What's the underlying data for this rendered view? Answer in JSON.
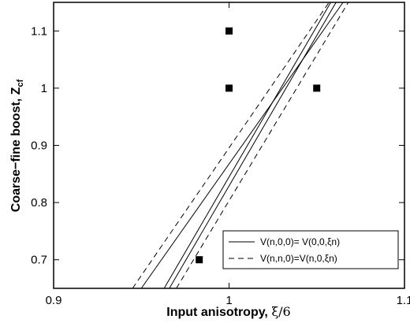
{
  "chart_data": {
    "type": "line",
    "xlabel_main": "Input anisotropy, ",
    "xlabel_symbol": "ξ/6",
    "ylabel_main": "Coarse−fine boost, Z",
    "ylabel_sub": "cf",
    "xlim": [
      0.9,
      1.1
    ],
    "ylim": [
      0.65,
      1.15
    ],
    "xticks": [
      0.9,
      1.0,
      1.1
    ],
    "xtick_labels": [
      "0.9",
      "1",
      "1.1"
    ],
    "yticks": [
      0.7,
      0.8,
      0.9,
      1.0,
      1.1
    ],
    "ytick_labels": [
      "0.7",
      "0.8",
      "0.9",
      "1",
      "1.1"
    ],
    "legend_position": "bottom-right",
    "legend": [
      {
        "label": "V(n,0,0)= V(0,0,ξn)",
        "style": "solid"
      },
      {
        "label": "V(n,n,0)=V(n,0,ξn)",
        "style": "dashed"
      }
    ],
    "series": [
      {
        "style": "solid",
        "x": [
          0.95,
          1.065
        ],
        "y": [
          0.65,
          1.15
        ]
      },
      {
        "style": "solid",
        "x": [
          0.963,
          1.058
        ],
        "y": [
          0.65,
          1.15
        ]
      },
      {
        "style": "solid",
        "x": [
          0.966,
          1.061
        ],
        "y": [
          0.65,
          1.15
        ]
      },
      {
        "style": "dashed",
        "x": [
          0.945,
          1.057
        ],
        "y": [
          0.65,
          1.15
        ]
      },
      {
        "style": "dashed",
        "x": [
          0.97,
          1.068
        ],
        "y": [
          0.65,
          1.15
        ]
      }
    ],
    "points": [
      {
        "x": 1.0,
        "y": 1.1
      },
      {
        "x": 1.0,
        "y": 1.0
      },
      {
        "x": 1.05,
        "y": 1.0
      },
      {
        "x": 0.983,
        "y": 0.7
      }
    ]
  }
}
